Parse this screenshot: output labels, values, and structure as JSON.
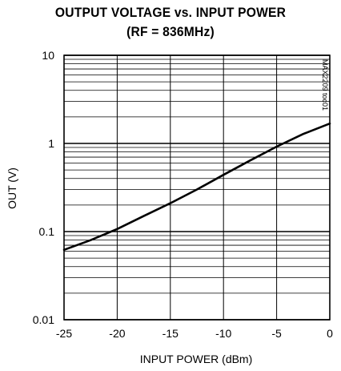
{
  "chart_data": {
    "type": "line",
    "title": "OUTPUT VOLTAGE vs. INPUT POWER",
    "subtitle": "(RF = 836MHz)",
    "xlabel": "INPUT POWER (dBm)",
    "ylabel": "OUT (V)",
    "xlim": [
      -25,
      0
    ],
    "ylim": [
      0.01,
      10
    ],
    "yscale": "log",
    "grid": true,
    "x_ticks": [
      -25,
      -20,
      -15,
      -10,
      -5,
      0
    ],
    "x_tick_labels": [
      "-25",
      "-20",
      "-15",
      "-10",
      "-5",
      "0"
    ],
    "y_ticks": [
      0.01,
      0.1,
      1,
      10
    ],
    "y_tick_labels": [
      "0.01",
      "0.1",
      "1",
      "10"
    ],
    "annotation": "MAX2209 toc01",
    "series": [
      {
        "x": [
          -25,
          -22.5,
          -20,
          -17.5,
          -15,
          -12.5,
          -10,
          -7.5,
          -5,
          -2.5,
          0
        ],
        "y": [
          0.062,
          0.08,
          0.107,
          0.15,
          0.21,
          0.3,
          0.44,
          0.64,
          0.92,
          1.28,
          1.68
        ]
      }
    ]
  }
}
